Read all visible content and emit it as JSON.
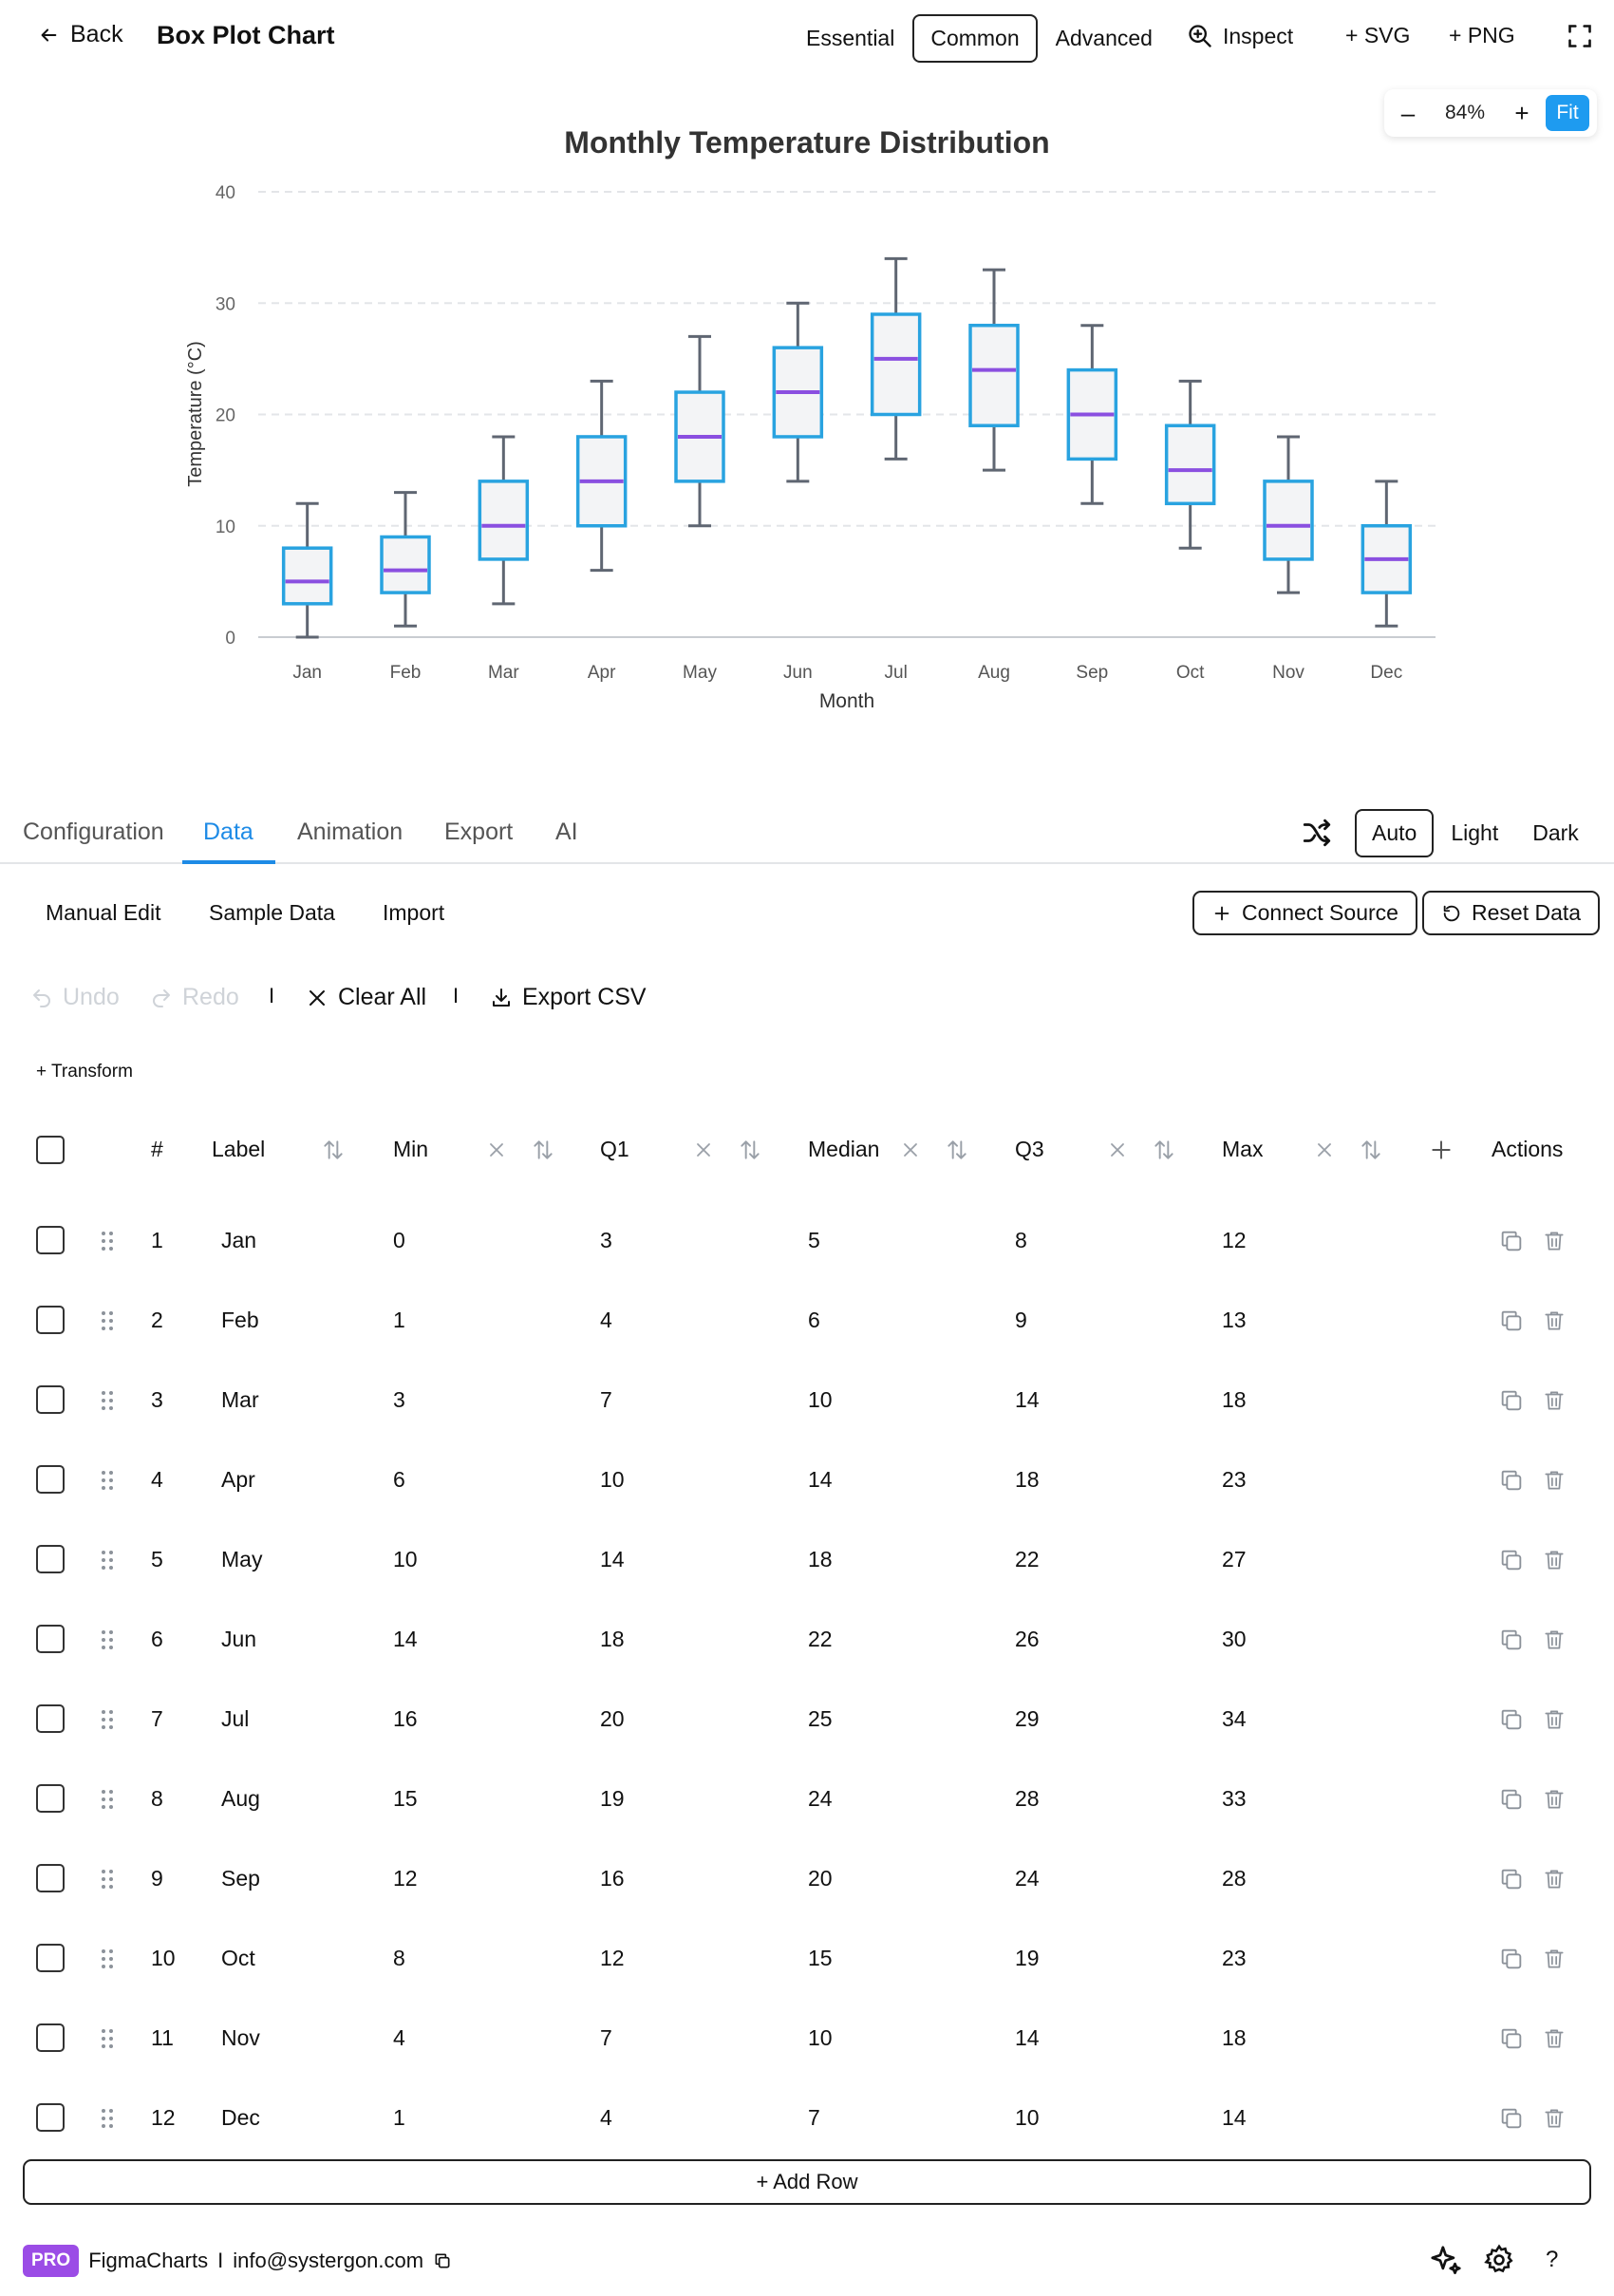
{
  "header": {
    "back_label": "Back",
    "title": "Box Plot Chart",
    "modes": [
      "Essential",
      "Common",
      "Advanced"
    ],
    "active_mode": "Common",
    "inspect_label": "Inspect",
    "svg_label": "+ SVG",
    "png_label": "+ PNG"
  },
  "zoom": {
    "minus": "–",
    "value": "84%",
    "plus": "+",
    "fit": "Fit"
  },
  "chart_data": {
    "type": "box",
    "title": "Monthly Temperature Distribution",
    "xlabel": "Month",
    "ylabel": "Temperature (°C)",
    "ylim": [
      0,
      40
    ],
    "yticks": [
      "0",
      "10",
      "20",
      "30",
      "40"
    ],
    "grid": true,
    "categories": [
      "Jan",
      "Feb",
      "Mar",
      "Apr",
      "May",
      "Jun",
      "Jul",
      "Aug",
      "Sep",
      "Oct",
      "Nov",
      "Dec"
    ],
    "min": [
      0,
      1,
      3,
      6,
      10,
      14,
      16,
      15,
      12,
      8,
      4,
      1
    ],
    "q1": [
      3,
      4,
      7,
      10,
      14,
      18,
      20,
      19,
      16,
      12,
      7,
      4
    ],
    "median": [
      5,
      6,
      10,
      14,
      18,
      22,
      25,
      24,
      20,
      15,
      10,
      7
    ],
    "q3": [
      8,
      9,
      14,
      18,
      22,
      26,
      29,
      28,
      24,
      19,
      14,
      10
    ],
    "max": [
      12,
      13,
      18,
      23,
      27,
      30,
      34,
      33,
      28,
      23,
      18,
      14
    ],
    "colors": {
      "box_stroke": "#29a3e0",
      "box_fill": "#f3f4f6",
      "median": "#8a4fe0",
      "whisker": "#5f6672",
      "grid": "#e3e5e8",
      "axis": "#c9ccd1"
    }
  },
  "tabs": {
    "items": [
      "Configuration",
      "Data",
      "Animation",
      "Export",
      "AI"
    ],
    "active": "Data",
    "themes": [
      "Auto",
      "Light",
      "Dark"
    ],
    "active_theme": "Auto"
  },
  "data_panel": {
    "subtabs": [
      "Manual Edit",
      "Sample Data",
      "Import"
    ],
    "connect_label": "Connect Source",
    "reset_label": "Reset Data",
    "undo_label": "Undo",
    "redo_label": "Redo",
    "separator": "I",
    "clear_label": "Clear All",
    "export_label": "Export CSV",
    "transform_label": "+ Transform",
    "add_row_label": "+ Add Row"
  },
  "table": {
    "columns": {
      "index": "#",
      "label": "Label",
      "min": "Min",
      "q1": "Q1",
      "median": "Median",
      "q3": "Q3",
      "max": "Max",
      "actions": "Actions"
    },
    "rows": [
      [
        "1",
        "Jan",
        "0",
        "3",
        "5",
        "8",
        "12"
      ],
      [
        "2",
        "Feb",
        "1",
        "4",
        "6",
        "9",
        "13"
      ],
      [
        "3",
        "Mar",
        "3",
        "7",
        "10",
        "14",
        "18"
      ],
      [
        "4",
        "Apr",
        "6",
        "10",
        "14",
        "18",
        "23"
      ],
      [
        "5",
        "May",
        "10",
        "14",
        "18",
        "22",
        "27"
      ],
      [
        "6",
        "Jun",
        "14",
        "18",
        "22",
        "26",
        "30"
      ],
      [
        "7",
        "Jul",
        "16",
        "20",
        "25",
        "29",
        "34"
      ],
      [
        "8",
        "Aug",
        "15",
        "19",
        "24",
        "28",
        "33"
      ],
      [
        "9",
        "Sep",
        "12",
        "16",
        "20",
        "24",
        "28"
      ],
      [
        "10",
        "Oct",
        "8",
        "12",
        "15",
        "19",
        "23"
      ],
      [
        "11",
        "Nov",
        "4",
        "7",
        "10",
        "14",
        "18"
      ],
      [
        "12",
        "Dec",
        "1",
        "4",
        "7",
        "10",
        "14"
      ]
    ]
  },
  "footer": {
    "badge": "PRO",
    "brand": "FigmaCharts",
    "separator": "I",
    "email": "info@systergon.com",
    "help": "?"
  }
}
